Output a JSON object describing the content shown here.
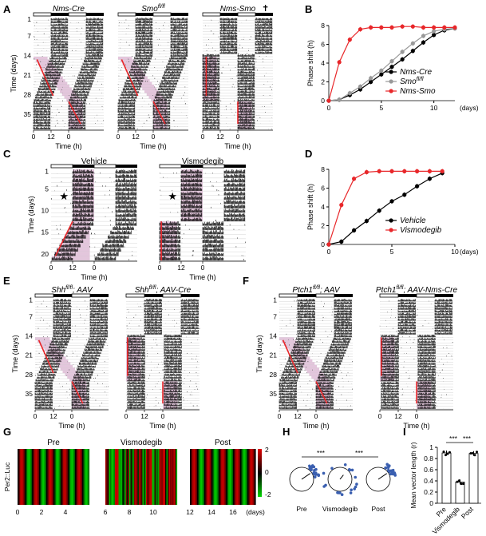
{
  "figure": {
    "panels": {
      "A": {
        "label": "A",
        "titles": [
          "Nms-Cre",
          "Smo",
          "Nms-Smo"
        ],
        "titles_sup": [
          "",
          "fl/fl",
          ""
        ],
        "ylabel": "Time (days)",
        "xlabel": "Time (h)",
        "yticks": [
          "1",
          "7",
          "14",
          "21",
          "28",
          "35"
        ],
        "xticks": [
          "0",
          "12",
          "0"
        ]
      },
      "B": {
        "label": "B",
        "ylabel": "Phase shift (h)",
        "xlabel": "(days)"
      },
      "C": {
        "label": "C",
        "titles": [
          "Vehicle",
          "Vismodegib"
        ],
        "ylabel": "Time (days)",
        "xlabel": "Time (h)",
        "yticks": [
          "1",
          "5",
          "10",
          "15",
          "20"
        ],
        "xticks": [
          "0",
          "12",
          "0"
        ]
      },
      "D": {
        "label": "D",
        "ylabel": "Phase shift (h)",
        "xlabel": "(days)"
      },
      "E": {
        "label": "E",
        "titles": [
          "Shh",
          "Shh"
        ],
        "titles_sup": [
          "fl/fl",
          "fl/fl"
        ],
        "titles_suffix": [
          "; AAV",
          "; AAV-Cre"
        ],
        "ylabel": "Time (days)",
        "xlabel": "Time (h)",
        "yticks": [
          "1",
          "7",
          "14",
          "21",
          "28",
          "35"
        ],
        "xticks": [
          "0",
          "12",
          "0"
        ]
      },
      "F": {
        "label": "F",
        "titles": [
          "Ptch1",
          "Ptch1"
        ],
        "titles_sup": [
          "fl/fl",
          "fl/fl"
        ],
        "titles_suffix": [
          "; AAV",
          "; AAV-Nms-Cre"
        ],
        "ylabel": "Time (days)",
        "xlabel": "Time (h)",
        "yticks": [
          "1",
          "7",
          "14",
          "21",
          "28",
          "35"
        ],
        "xticks": [
          "0",
          "12",
          "0"
        ]
      },
      "G": {
        "label": "G",
        "ylabel": "Per2::Luc",
        "segments": [
          "Pre",
          "Vismodegib",
          "Post"
        ],
        "xticks": [
          "0",
          "2",
          "4",
          "6",
          "8",
          "10",
          "12",
          "14",
          "16"
        ],
        "xlabel": "(days)",
        "scale": [
          "2",
          "0",
          "-2"
        ]
      },
      "H": {
        "label": "H",
        "groups": [
          "Pre",
          "Vismodegib",
          "Post"
        ],
        "sig": "***"
      },
      "I": {
        "label": "I",
        "ylabel": "Mean vector length (r)"
      }
    }
  },
  "chart_data": [
    {
      "type": "line",
      "panel": "B",
      "ylabel": "Phase shift (h)",
      "xlabel": "(days)",
      "xlim": [
        0,
        12
      ],
      "ylim": [
        0,
        8
      ],
      "xticks": [
        0,
        5,
        10
      ],
      "yticks": [
        0,
        2,
        4,
        6,
        8
      ],
      "legend_position": "inside-bottom-right",
      "series": [
        {
          "name": "Nms-Cre",
          "color": "#000000",
          "x": [
            0,
            1,
            2,
            3,
            4,
            5,
            6,
            7,
            8,
            9,
            10,
            11,
            12
          ],
          "y": [
            0,
            0.1,
            0.6,
            1.2,
            2.0,
            2.8,
            3.6,
            4.4,
            5.3,
            6.2,
            7.0,
            7.5,
            7.7
          ]
        },
        {
          "name": "Smo",
          "name_sup": "fl/fl",
          "color": "#999999",
          "x": [
            0,
            1,
            2,
            3,
            4,
            5,
            6,
            7,
            8,
            9,
            10,
            11,
            12
          ],
          "y": [
            0,
            0.1,
            0.8,
            1.5,
            2.4,
            3.2,
            4.2,
            5.2,
            6.1,
            6.9,
            7.4,
            7.6,
            7.7
          ]
        },
        {
          "name": "Nms-Smo",
          "color": "#e8272a",
          "x": [
            0,
            1,
            2,
            3,
            4,
            5,
            6,
            7,
            8,
            9,
            10,
            11,
            12
          ],
          "y": [
            0,
            4.1,
            6.5,
            7.6,
            7.8,
            7.8,
            7.8,
            7.9,
            7.9,
            7.8,
            7.8,
            7.8,
            7.8
          ]
        }
      ]
    },
    {
      "type": "line",
      "panel": "D",
      "ylabel": "Phase shift (h)",
      "xlabel": "(days)",
      "xlim": [
        0,
        10
      ],
      "ylim": [
        0,
        8
      ],
      "xticks": [
        0,
        5,
        10
      ],
      "yticks": [
        0,
        2,
        4,
        6,
        8
      ],
      "legend_position": "inside-bottom-right",
      "series": [
        {
          "name": "Vehicle",
          "color": "#000000",
          "x": [
            0,
            1,
            2,
            3,
            4,
            5,
            6,
            7,
            8,
            9
          ],
          "y": [
            0,
            0.3,
            1.5,
            2.5,
            3.6,
            4.6,
            5.3,
            6.2,
            7.0,
            7.6
          ]
        },
        {
          "name": "Vismodegib",
          "color": "#e8272a",
          "x": [
            0,
            1,
            2,
            3,
            4,
            5,
            6,
            7,
            8,
            9
          ],
          "y": [
            0,
            4.2,
            7.0,
            7.7,
            7.8,
            7.8,
            7.8,
            7.8,
            7.8,
            7.8
          ]
        }
      ]
    },
    {
      "type": "bar",
      "panel": "I",
      "ylabel": "Mean vector length (r)",
      "categories": [
        "Pre",
        "Vismodegib",
        "Post"
      ],
      "values": [
        0.9,
        0.38,
        0.89
      ],
      "ylim": [
        0,
        1.0
      ],
      "yticks": [
        0,
        0.2,
        0.4,
        0.6,
        0.8,
        1.0
      ],
      "sig": [
        "***",
        "***"
      ]
    }
  ]
}
